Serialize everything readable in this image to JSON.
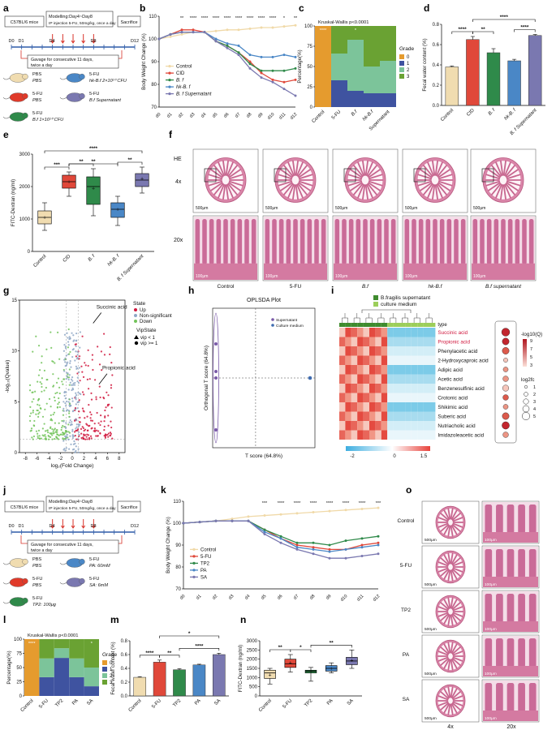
{
  "panels": {
    "a": {
      "label": "a",
      "mouse": "C57BL/6 mice",
      "model_line1": "Modelling:Day4~Day8",
      "model_line2": "IP injection 5-FU, 50mg/kg, once a day",
      "sacrifice": "Sacrifice",
      "days": [
        "D0",
        "D1",
        "D4",
        "D8",
        "D12"
      ],
      "gavage_line1": "Gavage for consecutive 11 days,",
      "gavage_line2": "twice a day",
      "groups": [
        {
          "top": "PBS",
          "bottom": "PBS",
          "color": "#f0dcb0"
        },
        {
          "top": "5-FU",
          "bottom": "hk-B.f 2×10¹⁰ CFU",
          "color": "#4a87c6"
        },
        {
          "top": "5-FU",
          "bottom": "PBS",
          "color": "#e03a2a"
        },
        {
          "top": "5-FU",
          "bottom": "B.f Supernatant",
          "color": "#7a78b0"
        },
        {
          "top": "5-FU",
          "bottom": "B.f 1×10¹⁰ CFU",
          "color": "#2f8a4a"
        }
      ]
    },
    "b": {
      "label": "b"
    },
    "c": {
      "label": "c"
    },
    "d": {
      "label": "d"
    },
    "e": {
      "label": "e"
    },
    "f": {
      "label": "f",
      "stain": "HE",
      "mag_top": "4x",
      "mag_bottom": "20x",
      "scale_top": "500μm",
      "scale_bottom": "100μm",
      "columns": [
        "Control",
        "5-FU",
        "B.f",
        "hk-B.f",
        "B.f supernatant"
      ]
    },
    "g": {
      "label": "g"
    },
    "h": {
      "label": "h"
    },
    "i": {
      "label": "i"
    },
    "j": {
      "label": "j",
      "mouse": "C57BL/6 mice",
      "model_line1": "Modelling:Day4~Day8",
      "model_line2": "IP injection 5-FU, 50mg/kg, once a day",
      "sacrifice": "Sacrifice",
      "days": [
        "D0",
        "D1",
        "D4",
        "D8",
        "D12"
      ],
      "gavage_line1": "Gavage for consecutive 11 days,",
      "gavage_line2": "twice a day",
      "groups": [
        {
          "top": "PBS",
          "bottom": "PBS",
          "color": "#f0dcb0"
        },
        {
          "top": "5-FU",
          "bottom": "PA: 60mM",
          "color": "#4a87c6"
        },
        {
          "top": "5-FU",
          "bottom": "PBS",
          "color": "#e03a2a"
        },
        {
          "top": "5-FU",
          "bottom": "SA: 6mM",
          "color": "#7a78b0"
        },
        {
          "top": "5-FU",
          "bottom": "TP2: 100μg",
          "color": "#2f8a4a"
        }
      ]
    },
    "k": {
      "label": "k"
    },
    "l": {
      "label": "l"
    },
    "m": {
      "label": "m"
    },
    "n": {
      "label": "n"
    },
    "o": {
      "label": "o",
      "rows": [
        "Control",
        "5-FU",
        "TP2",
        "PA",
        "SA"
      ],
      "mag_left": "4x",
      "mag_right": "20x",
      "scale_left": "500μm",
      "scale_right": "100μm"
    }
  },
  "chart_data": [
    {
      "id": "b",
      "type": "line",
      "ylabel": "Body Weight Change (%)",
      "x": [
        "d0",
        "d1",
        "d2",
        "d3",
        "d4",
        "d5",
        "d6",
        "d7",
        "d8",
        "d9",
        "d10",
        "d11",
        "d12"
      ],
      "ylim": [
        70,
        110
      ],
      "yticks": [
        70,
        80,
        90,
        100,
        110
      ],
      "series": [
        {
          "name": "Control",
          "color": "#f0d9a8",
          "values": [
            100,
            101,
            102,
            103,
            103,
            103.5,
            104,
            104,
            104.5,
            105,
            105,
            105.5,
            106
          ]
        },
        {
          "name": "CID",
          "color": "#e0483a",
          "values": [
            100,
            102,
            104,
            104,
            103,
            99,
            97,
            94,
            90,
            85,
            82,
            81,
            82
          ]
        },
        {
          "name": "B. f",
          "color": "#2f8a4a",
          "values": [
            100,
            102,
            103,
            103,
            103,
            99,
            97,
            94,
            89,
            86,
            86,
            86,
            87
          ]
        },
        {
          "name": "hk-B. f",
          "color": "#4a87c6",
          "values": [
            100,
            102,
            103,
            103,
            103,
            100,
            98,
            97,
            93,
            92,
            92,
            93,
            92
          ]
        },
        {
          "name": "B. f Supernatant",
          "color": "#7a78b0",
          "values": [
            100,
            102,
            103,
            103,
            103,
            99,
            96,
            93,
            87,
            83,
            81,
            78,
            75
          ]
        }
      ],
      "annotations": [
        "**",
        "****",
        "****",
        "****",
        "****",
        "****",
        "****",
        "****",
        "****",
        "*",
        "**"
      ]
    },
    {
      "id": "c",
      "type": "bar",
      "title": "Kruskal-Wallis p<0.0001",
      "ylabel": "Percentage(%)",
      "categories": [
        "Control",
        "5-FU",
        "B.f",
        "hk-B.f",
        "Supernatant"
      ],
      "ylim": [
        0,
        100
      ],
      "yticks": [
        0,
        25,
        50,
        75,
        100
      ],
      "legend_title": "Grade",
      "series": [
        {
          "name": "0",
          "color": "#e59b2e",
          "values": [
            100,
            0,
            0,
            0,
            0
          ]
        },
        {
          "name": "1",
          "color": "#3f53a0",
          "values": [
            0,
            33,
            20,
            17,
            17
          ]
        },
        {
          "name": "2",
          "color": "#7cc49a",
          "values": [
            0,
            33,
            63,
            33,
            40
          ]
        },
        {
          "name": "3",
          "color": "#6aa233",
          "values": [
            0,
            34,
            17,
            50,
            43
          ]
        }
      ],
      "annotations": [
        "****",
        "",
        "*",
        "",
        ""
      ]
    },
    {
      "id": "d",
      "type": "bar",
      "ylabel": "Fecal water content (%)",
      "categories": [
        "Control",
        "CID",
        "B. f",
        "hk-B. f",
        "B. f Supernatant"
      ],
      "values": [
        0.38,
        0.65,
        0.52,
        0.44,
        0.69
      ],
      "errors": [
        0.01,
        0.03,
        0.04,
        0.015,
        0.01
      ],
      "colors": [
        "#f0dcb0",
        "#e0483a",
        "#2f8a4a",
        "#4a87c6",
        "#7a78b0"
      ],
      "ylim": [
        0,
        0.8
      ],
      "yticks": [
        0.0,
        0.2,
        0.4,
        0.6,
        0.8
      ],
      "brackets": [
        {
          "from": 0,
          "to": 1,
          "label": "****"
        },
        {
          "from": 1,
          "to": 2,
          "label": "**"
        },
        {
          "from": 3,
          "to": 4,
          "label": "****"
        },
        {
          "from": 1,
          "to": 4,
          "label": "****"
        }
      ]
    },
    {
      "id": "e",
      "type": "box",
      "ylabel": "FITC-Dextran (ng/ml)",
      "categories": [
        "Control",
        "CID",
        "B. f",
        "hk-B. f",
        "B. f Supernatant"
      ],
      "colors": [
        "#f0dcb0",
        "#e0483a",
        "#2f8a4a",
        "#4a87c6",
        "#7a78b0"
      ],
      "boxes": [
        {
          "min": 650,
          "q1": 850,
          "median": 1050,
          "q3": 1250,
          "max": 1500,
          "mean": 1050
        },
        {
          "min": 1700,
          "q1": 1950,
          "median": 2150,
          "q3": 2350,
          "max": 2450,
          "mean": 2150
        },
        {
          "min": 1100,
          "q1": 1450,
          "median": 2000,
          "q3": 2300,
          "max": 2550,
          "mean": 1950
        },
        {
          "min": 800,
          "q1": 1050,
          "median": 1300,
          "q3": 1500,
          "max": 1700,
          "mean": 1300
        },
        {
          "min": 1800,
          "q1": 2000,
          "median": 2200,
          "q3": 2400,
          "max": 2600,
          "mean": 2250
        }
      ],
      "ylim": [
        0,
        3000
      ],
      "yticks": [
        0,
        1000,
        2000,
        3000
      ],
      "brackets": [
        {
          "from": 0,
          "to": 1,
          "label": "***"
        },
        {
          "from": 1,
          "to": 2,
          "label": "**"
        },
        {
          "from": 1,
          "to": 3,
          "label": "**"
        },
        {
          "from": 3,
          "to": 4,
          "label": "**"
        },
        {
          "from": 0,
          "to": 4,
          "label": "****"
        }
      ]
    },
    {
      "id": "g",
      "type": "scatter",
      "xlabel": "log₂(Fold Change)",
      "ylabel": "-log₁₀(Qvalue)",
      "xlim": [
        -9,
        9
      ],
      "ylim": [
        0,
        15
      ],
      "xticks": [
        -8,
        -6,
        -4,
        -2,
        0,
        2,
        4,
        6,
        8
      ],
      "yticks": [
        0,
        5,
        10,
        15
      ],
      "legend": {
        "state_title": "State",
        "states": [
          {
            "name": "Up",
            "color": "#d0173d"
          },
          {
            "name": "Non-significant",
            "color": "#8ea7c6"
          },
          {
            "name": "Down",
            "color": "#72c35a"
          }
        ],
        "vip_title": "VipState",
        "vips": [
          "vip < 1",
          "vip >= 1"
        ]
      },
      "annotations": [
        {
          "text": "Succinic acid",
          "x": 5.5,
          "y": 14
        },
        {
          "text": "Propionic acid",
          "x": 6.5,
          "y": 8
        }
      ]
    },
    {
      "id": "h",
      "type": "scatter",
      "title": "OPLSDA Plot",
      "xlabel": "T score (64.8%)",
      "ylabel": "Orthogonal T score (64.8%)",
      "legend": [
        {
          "name": "Supernatant",
          "color": "#7a5aa8"
        },
        {
          "name": "Culture medium",
          "color": "#3f6cb0"
        }
      ]
    },
    {
      "id": "i",
      "type": "heatmap",
      "legend_groups": [
        {
          "name": "B.fragilis supernatant",
          "color": "#3f8b2e"
        },
        {
          "name": "culture medium",
          "color": "#9cce5a"
        }
      ],
      "type_label": "type",
      "rows": [
        "Succinic acid",
        "Propionic acid",
        "Phenylacetic acid",
        "2-Hydroxycaproic acid",
        "Adipic acid",
        "Acetic acid",
        "Benzenesulfinic acid",
        "Crotonic acid",
        "Shikimic acid",
        "Suberic acid",
        "Nutriacholic acid",
        "Imidazoleacetic acid"
      ],
      "highlight_rows": [
        "Succinic acid",
        "Propionic acid"
      ],
      "scale_ticks": [
        "-2",
        "0",
        "1.5"
      ],
      "size_legend_title": "log2fc",
      "size_legend": [
        1,
        2,
        3,
        4,
        5
      ],
      "color_legend_title": "-log10(Q)",
      "color_legend": [
        9,
        7,
        5,
        3
      ],
      "row_log2fc": [
        5,
        4,
        4,
        2,
        2.5,
        3,
        3.5,
        3,
        2.5,
        4,
        4.5,
        3
      ],
      "row_q": [
        9,
        8,
        7,
        5,
        6,
        6,
        5,
        7,
        6,
        7,
        8,
        6
      ]
    },
    {
      "id": "k",
      "type": "line",
      "ylabel": "Body Weight Change (%)",
      "x": [
        "d0",
        "d1",
        "d2",
        "d3",
        "d4",
        "d5",
        "d6",
        "d7",
        "d8",
        "d9",
        "d10",
        "d11",
        "d12"
      ],
      "ylim": [
        70,
        110
      ],
      "yticks": [
        70,
        80,
        90,
        100,
        110
      ],
      "series": [
        {
          "name": "Control",
          "color": "#f0d9a8",
          "values": [
            100,
            100.5,
            101,
            102,
            103,
            103.5,
            104,
            104.5,
            105,
            105.5,
            106,
            106.5,
            107
          ]
        },
        {
          "name": "5-FU",
          "color": "#e0483a",
          "values": [
            100,
            100.5,
            101,
            101,
            101,
            97,
            93,
            90,
            89,
            88,
            88,
            90,
            91
          ]
        },
        {
          "name": "TP2",
          "color": "#2f8a4a",
          "values": [
            100,
            100.5,
            101,
            101,
            101,
            97,
            94,
            91,
            91,
            90,
            92,
            93,
            94
          ]
        },
        {
          "name": "PA",
          "color": "#4a87c6",
          "values": [
            100,
            100.5,
            101,
            101,
            101,
            96,
            93,
            89,
            88,
            87,
            88,
            89,
            90
          ]
        },
        {
          "name": "SA",
          "color": "#7a78b0",
          "values": [
            100,
            100.5,
            101,
            101,
            101,
            95,
            91,
            88,
            86,
            84,
            84,
            85,
            86
          ]
        }
      ],
      "annotations": [
        "***",
        "****",
        "****",
        "****",
        "****",
        "****",
        "****",
        "***"
      ]
    },
    {
      "id": "l",
      "type": "bar",
      "title": "Kruskal-Wallis p<0.0001",
      "ylabel": "Percentage(%)",
      "categories": [
        "Control",
        "5-FU",
        "TP2",
        "PA",
        "SA"
      ],
      "ylim": [
        0,
        100
      ],
      "yticks": [
        0,
        25,
        50,
        75,
        100
      ],
      "legend_title": "Grade",
      "series": [
        {
          "name": "0",
          "color": "#e59b2e",
          "values": [
            100,
            0,
            0,
            0,
            0
          ]
        },
        {
          "name": "1",
          "color": "#3f53a0",
          "values": [
            0,
            33,
            67,
            33,
            17
          ]
        },
        {
          "name": "2",
          "color": "#7cc49a",
          "values": [
            0,
            33,
            17,
            33,
            33
          ]
        },
        {
          "name": "3",
          "color": "#6aa233",
          "values": [
            0,
            34,
            16,
            34,
            50
          ]
        }
      ],
      "annotations": [
        "****",
        "",
        "",
        "",
        "*"
      ]
    },
    {
      "id": "m",
      "type": "bar",
      "ylabel": "Fecal water content (%)",
      "categories": [
        "Control",
        "5-FU",
        "TP2",
        "PA",
        "SA"
      ],
      "values": [
        0.27,
        0.49,
        0.38,
        0.45,
        0.6
      ],
      "errors": [
        0.01,
        0.03,
        0.015,
        0.01,
        0.02
      ],
      "colors": [
        "#f0dcb0",
        "#e0483a",
        "#2f8a4a",
        "#4a87c6",
        "#7a78b0"
      ],
      "ylim": [
        0,
        0.8
      ],
      "yticks": [
        0.0,
        0.2,
        0.4,
        0.6,
        0.8
      ],
      "brackets": [
        {
          "from": 0,
          "to": 1,
          "label": "****"
        },
        {
          "from": 1,
          "to": 2,
          "label": "**"
        },
        {
          "from": 2,
          "to": 4,
          "label": "****"
        },
        {
          "from": 1,
          "to": 4,
          "label": "*"
        }
      ]
    },
    {
      "id": "n",
      "type": "box",
      "ylabel": "FITC-Dextran (ng/ml)",
      "categories": [
        "Control",
        "5-FU",
        "TP2",
        "PA",
        "SA"
      ],
      "colors": [
        "#f0dcb0",
        "#e0483a",
        "#2f8a4a",
        "#4a87c6",
        "#7a78b0"
      ],
      "boxes": [
        {
          "min": 650,
          "q1": 950,
          "median": 1250,
          "q3": 1400,
          "max": 1500,
          "mean": 1150
        },
        {
          "min": 1300,
          "q1": 1550,
          "median": 1750,
          "q3": 2000,
          "max": 2250,
          "mean": 1800
        },
        {
          "min": 800,
          "q1": 1250,
          "median": 1350,
          "q3": 1400,
          "max": 1550,
          "mean": 1350
        },
        {
          "min": 1250,
          "q1": 1350,
          "median": 1500,
          "q3": 1650,
          "max": 1800,
          "mean": 1500
        },
        {
          "min": 1500,
          "q1": 1700,
          "median": 1900,
          "q3": 2100,
          "max": 2500,
          "mean": 1950
        }
      ],
      "ylim": [
        0,
        3000
      ],
      "yticks": [
        0,
        500,
        1000,
        1500,
        2000,
        2500,
        3000
      ],
      "brackets": [
        {
          "from": 0,
          "to": 1,
          "label": "**"
        },
        {
          "from": 1,
          "to": 2,
          "label": "*"
        },
        {
          "from": 2,
          "to": 4,
          "label": "**"
        }
      ]
    }
  ]
}
